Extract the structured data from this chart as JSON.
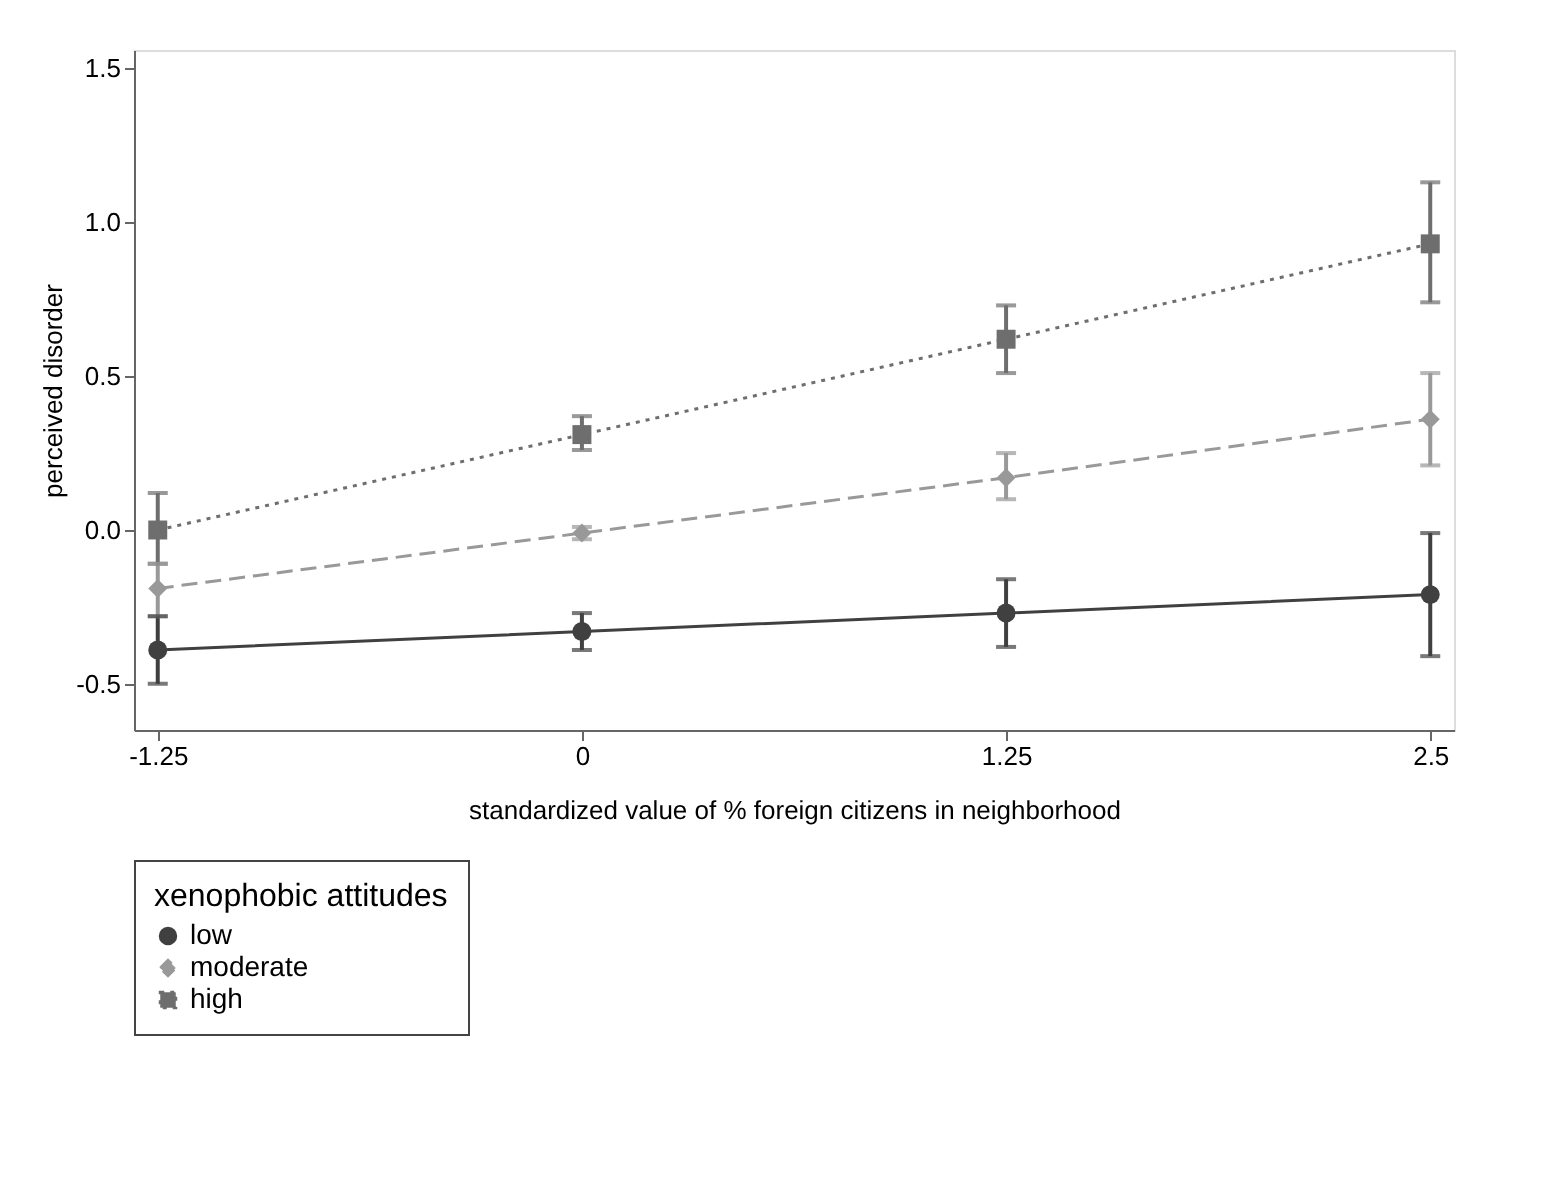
{
  "chart_data": {
    "type": "line",
    "xlabel": "standardized value of % foreign citizens in neighborhood",
    "ylabel": "perceived disorder",
    "legend_title": "xenophobic attitudes",
    "legend": "bottom",
    "grid": false,
    "x": [
      -1.25,
      0,
      1.25,
      2.5
    ],
    "xlim": [
      -1.32,
      2.57
    ],
    "xticks": [
      {
        "value": -1.25,
        "label": "-1.25"
      },
      0,
      {
        "value": 1.25,
        "label": "1.25"
      },
      {
        "value": 2.5,
        "label": "2.5"
      }
    ],
    "ylim": [
      -0.65,
      1.56
    ],
    "yticks": [
      {
        "value": -0.5,
        "label": "-0.5"
      },
      {
        "value": 0,
        "label": "0.0"
      },
      {
        "value": 0.5,
        "label": "0.5"
      },
      {
        "value": 1,
        "label": "1.0"
      },
      {
        "value": 1.5,
        "label": "1.5"
      }
    ],
    "series": [
      {
        "name": "low",
        "color": "#404040",
        "marker": "circle",
        "line_style": "solid",
        "values": [
          -0.39,
          -0.33,
          -0.27,
          -0.21
        ],
        "errors": [
          [
            -0.5,
            -0.28
          ],
          [
            -0.39,
            -0.27
          ],
          [
            -0.38,
            -0.16
          ],
          [
            -0.41,
            -0.01
          ]
        ]
      },
      {
        "name": "moderate",
        "color": "#999999",
        "marker": "diamond",
        "line_style": "dashed",
        "values": [
          -0.19,
          -0.01,
          0.17,
          0.36
        ],
        "errors": [
          [
            -0.28,
            -0.11
          ],
          [
            -0.03,
            0.01
          ],
          [
            0.1,
            0.25
          ],
          [
            0.21,
            0.51
          ]
        ]
      },
      {
        "name": "high",
        "color": "#6e6e6e",
        "marker": "square",
        "line_style": "dotted",
        "values": [
          0.0,
          0.31,
          0.62,
          0.93
        ],
        "errors": [
          [
            -0.11,
            0.12
          ],
          [
            0.26,
            0.37
          ],
          [
            0.51,
            0.73
          ],
          [
            0.74,
            1.13
          ]
        ]
      }
    ]
  }
}
